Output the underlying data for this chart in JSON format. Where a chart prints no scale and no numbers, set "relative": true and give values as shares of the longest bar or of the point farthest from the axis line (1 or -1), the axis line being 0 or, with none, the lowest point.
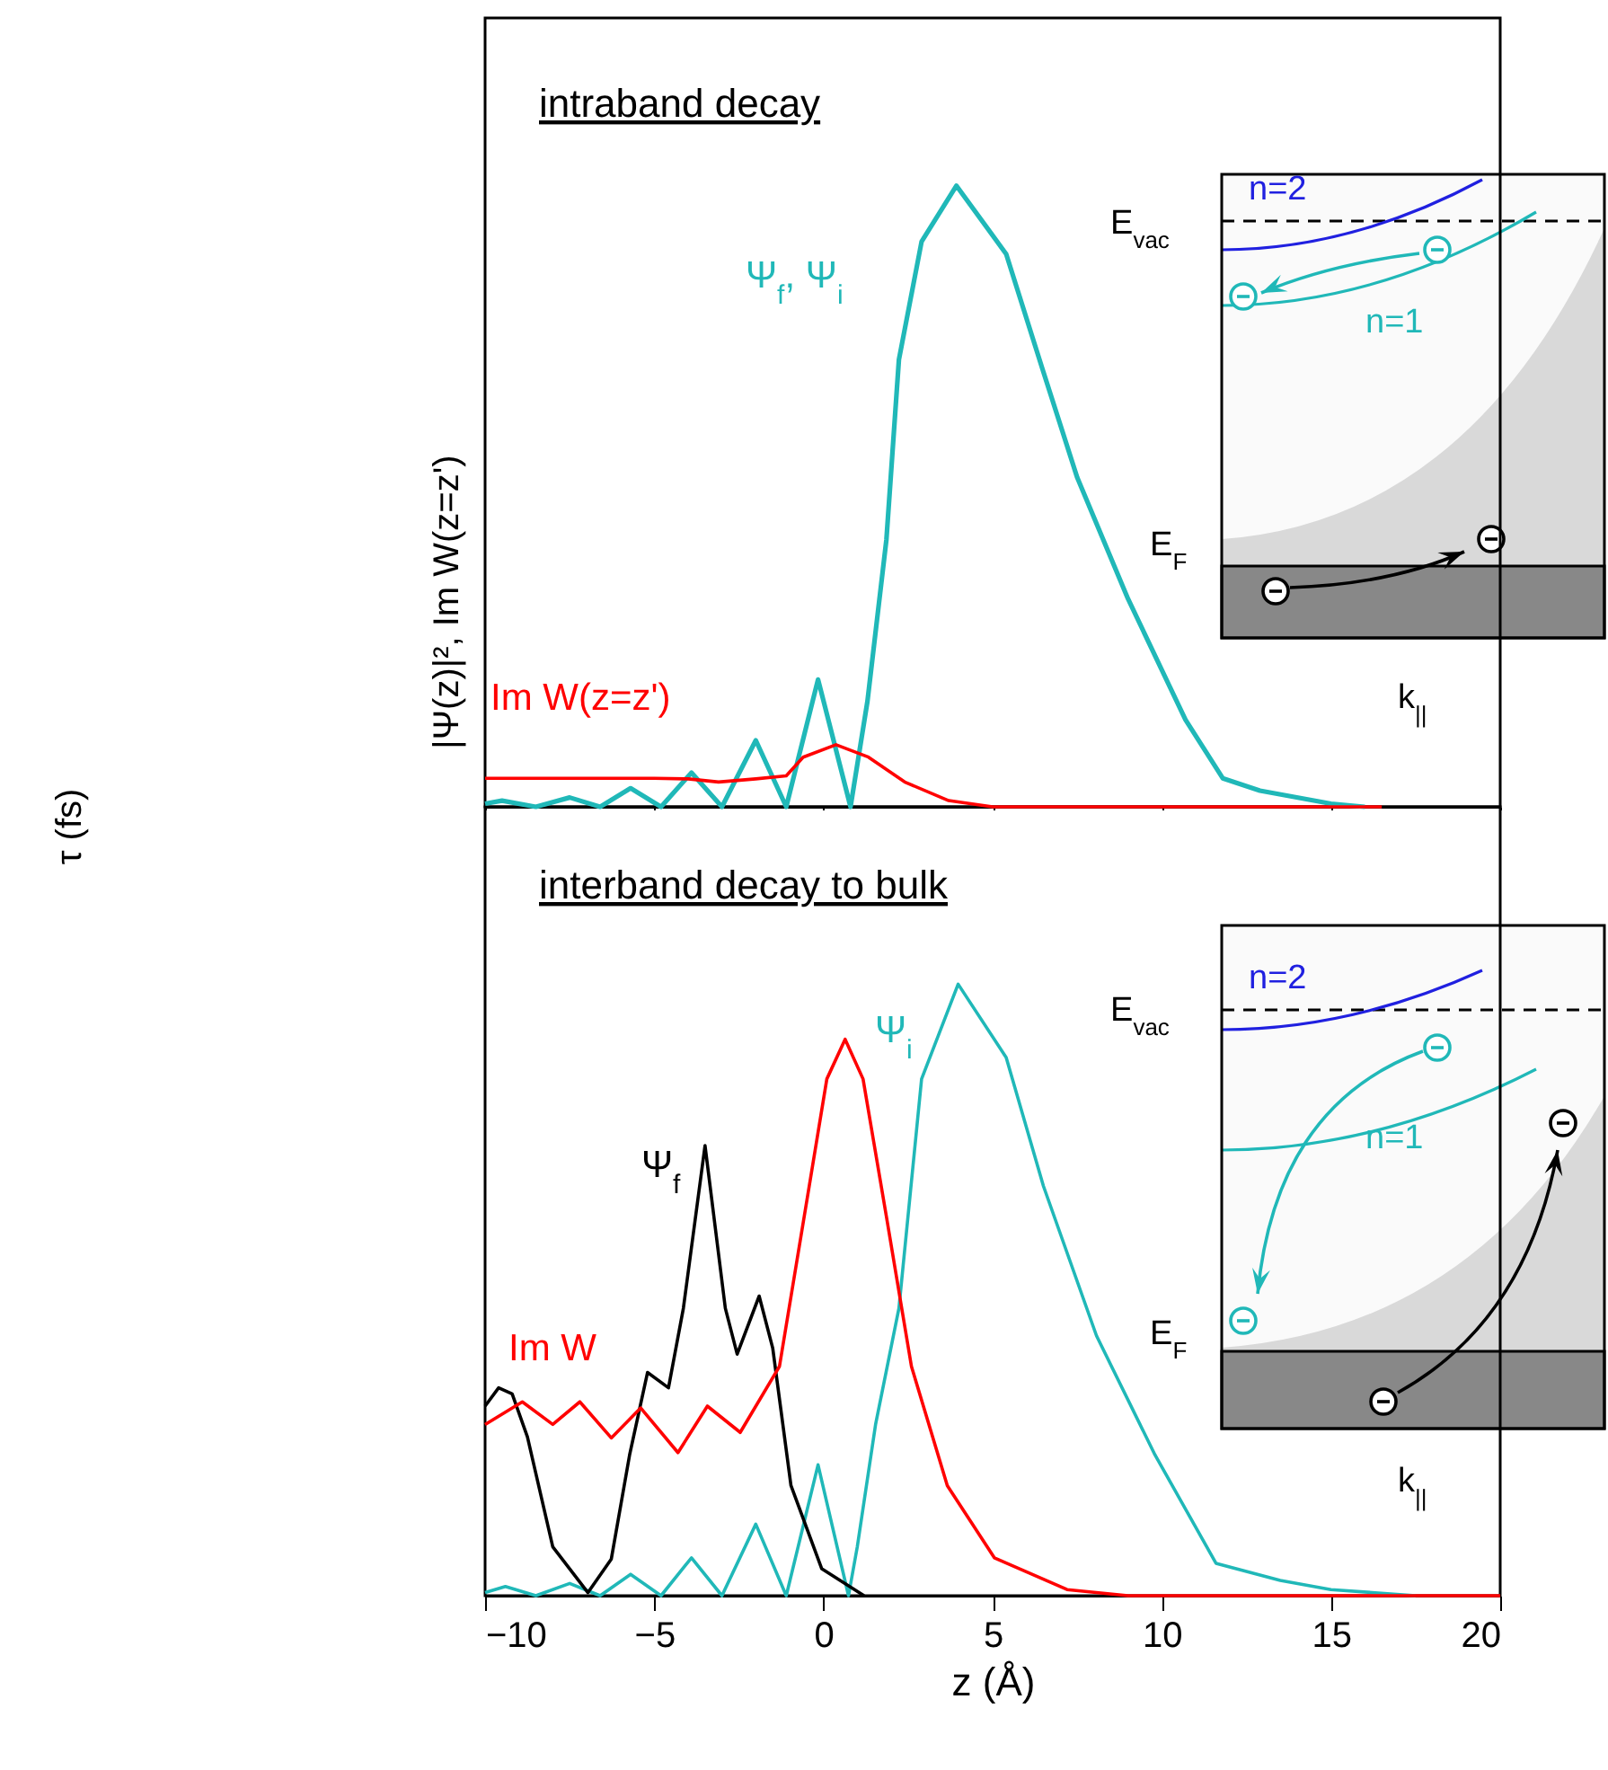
{
  "chart_data": [
    {
      "type": "line",
      "title": "intraband decay",
      "ylabel": "|Ψ(z)|², Im W(z=z')",
      "relative": true,
      "tick_labels": false,
      "xlim": [
        -10,
        20
      ],
      "xticks": [
        -10,
        -5,
        0,
        5,
        10,
        15,
        20
      ],
      "annotations": [
        "E$_{vac}$",
        "n=2",
        "n=1",
        "E$_{F}$",
        "k$_{||}$"
      ],
      "series": [
        {
          "name": "Ψ$_{f}$, Ψ$_{i}$",
          "color": "#20b8b8",
          "x": [
            -10,
            -9.5,
            -8.5,
            -7.5,
            -6.6,
            -5.7,
            -4.8,
            -3.9,
            -3.0,
            -2.0,
            -1.1,
            -0.16,
            0.8,
            1.3,
            1.86,
            2.23,
            2.9,
            3.93,
            5.4,
            6.5,
            7.5,
            9.0,
            10.7,
            11.8,
            12.9,
            15,
            16
          ],
          "values": [
            0.005,
            0.01,
            0,
            0.015,
            0,
            0.03,
            0,
            0.055,
            0,
            0.107,
            0,
            0.205,
            0,
            0.17,
            0.43,
            0.72,
            0.91,
            1,
            0.89,
            0.7,
            0.53,
            0.335,
            0.14,
            0.046,
            0.026,
            0.005,
            0
          ]
        },
        {
          "name": "Im W(z=z')",
          "color": "#ff0000",
          "x": [
            -10,
            -9,
            -8,
            -6,
            -5,
            -4,
            -3.1,
            -2,
            -1.1,
            -0.6,
            0.37,
            1.33,
            2.4,
            3.7,
            5,
            16.5
          ],
          "values": [
            0.046,
            0.046,
            0.046,
            0.046,
            0.046,
            0.045,
            0.04,
            0.045,
            0.05,
            0.08,
            0.1,
            0.08,
            0.04,
            0.01,
            0,
            0
          ]
        }
      ]
    },
    {
      "type": "line",
      "title": "interband decay to bulk",
      "xlabel": "z (Å)",
      "ylabel": "τ (fs)",
      "relative": true,
      "tick_labels": "x",
      "xlim": [
        -10,
        20
      ],
      "xticks": [
        -10,
        -5,
        0,
        5,
        10,
        15,
        20
      ],
      "annotations": [
        "E$_{vac}$",
        "n=2",
        "n=1",
        "E$_{F}$",
        "k$_{||}$"
      ],
      "series": [
        {
          "name": "Ψ$_{i}$",
          "color": "#20b8b8",
          "x": [
            -10,
            -9.4,
            -8.5,
            -7.5,
            -6.6,
            -5.7,
            -4.8,
            -3.9,
            -3.0,
            -2.0,
            -1.1,
            -0.16,
            0.74,
            1.0,
            1.54,
            2.23,
            2.9,
            3.98,
            5.4,
            6.5,
            8.07,
            9.8,
            11.6,
            13.5,
            15,
            17.5
          ],
          "values": [
            0.005,
            0.015,
            0,
            0.02,
            0,
            0.035,
            0,
            0.062,
            0,
            0.117,
            0,
            0.214,
            0,
            0.08,
            0.28,
            0.47,
            0.845,
            1,
            0.88,
            0.67,
            0.425,
            0.23,
            0.053,
            0.025,
            0.01,
            0
          ]
        },
        {
          "name": "Ψ$_{f}$",
          "color": "#000000",
          "x": [
            -10,
            -9.6,
            -9.2,
            -8.75,
            -8.0,
            -6.96,
            -6.27,
            -5.73,
            -5.2,
            -4.58,
            -4.14,
            -3.5,
            -2.9,
            -2.55,
            -1.9,
            -1.5,
            -0.96,
            -0.05,
            1.2
          ],
          "values": [
            0.31,
            0.34,
            0.33,
            0.26,
            0.08,
            0.005,
            0.06,
            0.23,
            0.365,
            0.34,
            0.47,
            0.736,
            0.47,
            0.395,
            0.49,
            0.405,
            0.18,
            0.044,
            0
          ]
        },
        {
          "name": "Im W",
          "color": "#ff0000",
          "x": [
            -10,
            -8.9,
            -8.0,
            -7.2,
            -6.27,
            -5.4,
            -4.3,
            -3.43,
            -2.46,
            -1.3,
            -0.42,
            0.1,
            0.64,
            1.17,
            1.86,
            2.6,
            3.66,
            5.05,
            7.2,
            9,
            20
          ],
          "values": [
            0.28,
            0.317,
            0.28,
            0.317,
            0.258,
            0.307,
            0.234,
            0.31,
            0.267,
            0.375,
            0.67,
            0.845,
            0.91,
            0.845,
            0.62,
            0.375,
            0.18,
            0.062,
            0.01,
            0,
            0
          ]
        }
      ]
    }
  ]
}
